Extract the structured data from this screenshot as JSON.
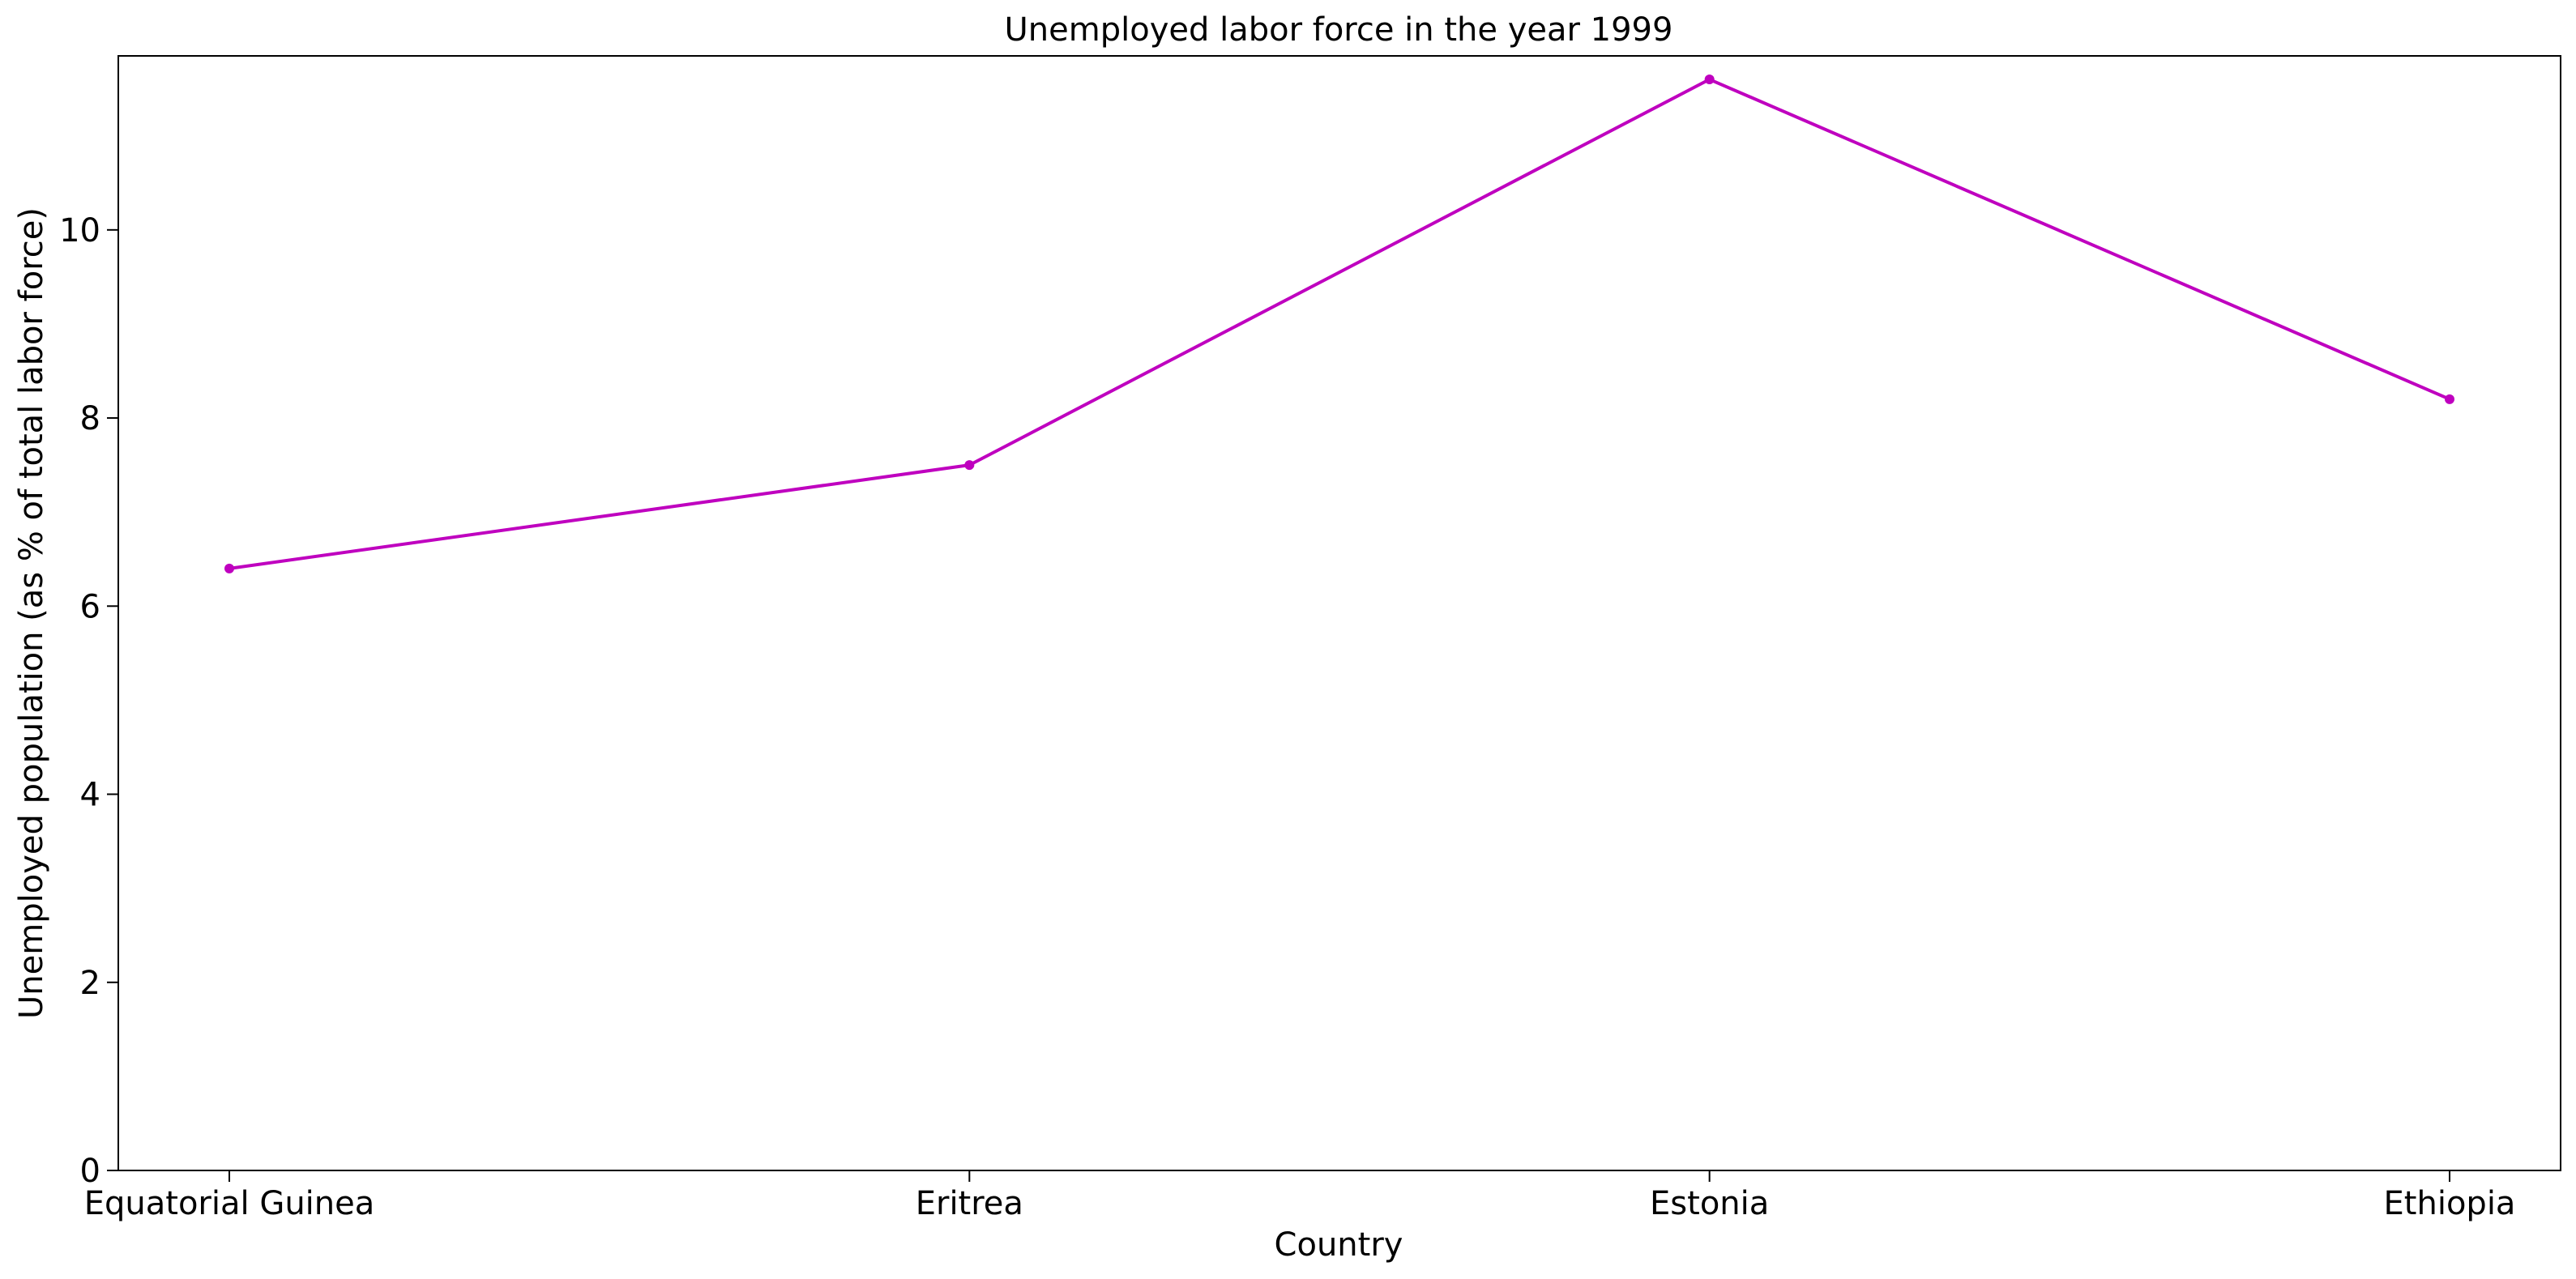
{
  "chart_data": {
    "type": "line",
    "title": "Unemployed labor force in the year 1999",
    "xlabel": "Country",
    "ylabel": "Unemployed population (as % of total labor force)",
    "categories": [
      "Equatorial Guinea",
      "Eritrea",
      "Estonia",
      "Ethiopia"
    ],
    "series": [
      {
        "values": [
          6.4,
          7.5,
          11.6,
          8.2
        ]
      }
    ],
    "ylim": [
      0,
      11.85
    ],
    "yticks": [
      0,
      2,
      4,
      6,
      8,
      10
    ],
    "grid": false,
    "line_color": "#bf00bf"
  }
}
